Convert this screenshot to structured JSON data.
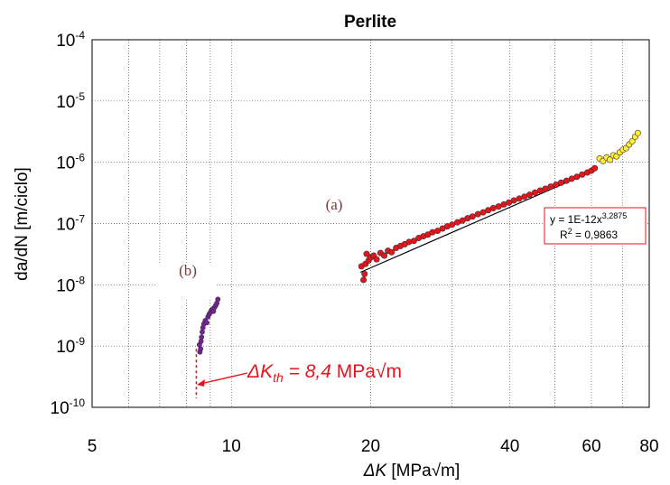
{
  "chart_data": {
    "type": "scatter",
    "title": "Perlite",
    "xlabel_symbol": "ΔK",
    "xlabel_unit": " [MPa√m]",
    "ylabel": "da/dN [m/ciclo]",
    "x_scale": "log",
    "y_scale": "log",
    "xlim": [
      5,
      80
    ],
    "ylim": [
      1e-10,
      0.0001
    ],
    "x_ticks": [
      5,
      10,
      20,
      40,
      60,
      80
    ],
    "x_tick_labels": [
      "5",
      "10",
      "20",
      "40",
      "60",
      "80"
    ],
    "y_ticks": [
      1e-10,
      1e-09,
      1e-08,
      1e-07,
      1e-06,
      1e-05,
      0.0001
    ],
    "y_tick_base": "10",
    "y_tick_exponents": [
      "-10",
      "-9",
      "-8",
      "-7",
      "-6",
      "-5",
      "-4"
    ],
    "grid": true,
    "series": [
      {
        "color": "#7b1fa2",
        "points": [
          [
            8.55,
            8e-10
          ],
          [
            8.58,
            9e-10
          ],
          [
            8.53,
            1.05e-09
          ],
          [
            8.6,
            1.2e-09
          ],
          [
            8.62,
            1.4e-09
          ],
          [
            8.65,
            1.7e-09
          ],
          [
            8.68,
            2e-09
          ],
          [
            8.72,
            2.3e-09
          ],
          [
            8.78,
            2.6e-09
          ],
          [
            8.85,
            2.4e-09
          ],
          [
            8.9,
            3e-09
          ],
          [
            8.95,
            3.3e-09
          ],
          [
            9.0,
            3.5e-09
          ],
          [
            9.05,
            3.8e-09
          ],
          [
            9.1,
            4e-09
          ],
          [
            9.15,
            3.7e-09
          ],
          [
            9.2,
            4.3e-09
          ],
          [
            9.25,
            4.6e-09
          ],
          [
            9.3,
            5e-09
          ],
          [
            9.35,
            5.8e-09
          ]
        ]
      },
      {
        "color": "#e8141c",
        "points": [
          [
            19.1,
            2e-08
          ],
          [
            19.3,
            1.2e-08
          ],
          [
            19.4,
            1.5e-08
          ],
          [
            19.5,
            2.2e-08
          ],
          [
            19.6,
            3.2e-08
          ],
          [
            19.8,
            2.5e-08
          ],
          [
            20.0,
            2.8e-08
          ],
          [
            20.3,
            3e-08
          ],
          [
            20.6,
            2.6e-08
          ],
          [
            21.0,
            3.3e-08
          ],
          [
            21.4,
            3e-08
          ],
          [
            21.8,
            3.6e-08
          ],
          [
            22.2,
            3.4e-08
          ],
          [
            22.7,
            4e-08
          ],
          [
            23.2,
            4.3e-08
          ],
          [
            23.7,
            4.6e-08
          ],
          [
            24.2,
            5e-08
          ],
          [
            24.8,
            5.2e-08
          ],
          [
            25.4,
            5.8e-08
          ],
          [
            26.0,
            6.2e-08
          ],
          [
            26.6,
            6.6e-08
          ],
          [
            27.2,
            7.2e-08
          ],
          [
            27.9,
            7.6e-08
          ],
          [
            28.6,
            8.3e-08
          ],
          [
            29.3,
            9e-08
          ],
          [
            30.0,
            9.6e-08
          ],
          [
            30.8,
            1.05e-07
          ],
          [
            31.6,
            1.12e-07
          ],
          [
            32.4,
            1.22e-07
          ],
          [
            33.2,
            1.3e-07
          ],
          [
            34.1,
            1.42e-07
          ],
          [
            35.0,
            1.52e-07
          ],
          [
            35.9,
            1.65e-07
          ],
          [
            36.8,
            1.78e-07
          ],
          [
            37.8,
            1.9e-07
          ],
          [
            38.8,
            2.05e-07
          ],
          [
            39.8,
            2.2e-07
          ],
          [
            40.8,
            2.38e-07
          ],
          [
            41.9,
            2.55e-07
          ],
          [
            43.0,
            2.75e-07
          ],
          [
            44.1,
            2.95e-07
          ],
          [
            45.3,
            3.2e-07
          ],
          [
            46.5,
            3.45e-07
          ],
          [
            47.7,
            3.7e-07
          ],
          [
            49.0,
            4e-07
          ],
          [
            50.3,
            4.3e-07
          ],
          [
            51.6,
            4.65e-07
          ],
          [
            53.0,
            5e-07
          ],
          [
            54.4,
            5.4e-07
          ],
          [
            55.8,
            5.8e-07
          ],
          [
            57.3,
            6.3e-07
          ],
          [
            58.8,
            6.8e-07
          ],
          [
            60.0,
            7.3e-07
          ],
          [
            61.0,
            8e-07
          ]
        ]
      },
      {
        "color": "#ffee33",
        "points": [
          [
            62.5,
            1.15e-06
          ],
          [
            63.6,
            1.05e-06
          ],
          [
            64.7,
            1.2e-06
          ],
          [
            65.8,
            1.1e-06
          ],
          [
            66.9,
            1.3e-06
          ],
          [
            68.0,
            1.25e-06
          ],
          [
            69.1,
            1.45e-06
          ],
          [
            70.2,
            1.6e-06
          ],
          [
            71.3,
            1.7e-06
          ],
          [
            72.4,
            1.95e-06
          ],
          [
            73.5,
            2.2e-06
          ],
          [
            74.6,
            2.6e-06
          ],
          [
            75.6,
            3e-06
          ]
        ]
      }
    ],
    "fit": {
      "coefficient": 1e-12,
      "exponent": 3.2875,
      "x_range": [
        19,
        61
      ],
      "equation_base": "y = 1E-12x",
      "equation_exp": "3,2875",
      "r2_label": "R",
      "r2_sup": "2",
      "r2_value": " = 0,9863"
    },
    "annotations": {
      "region_a": "(a)",
      "region_b": "(b)",
      "threshold": {
        "x": 8.4,
        "symbol": "ΔK",
        "subscript": "th",
        "value": " = 8,4",
        "unit": " MPa√m",
        "color": "#e8141c"
      }
    }
  }
}
